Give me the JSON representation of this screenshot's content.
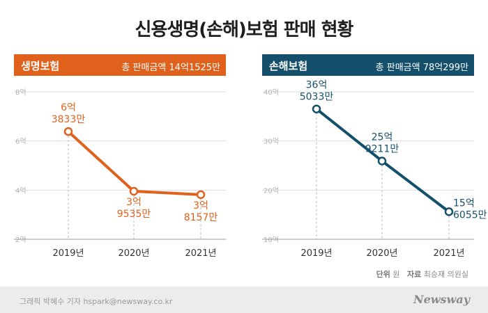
{
  "title": "신용생명(손해)보험 판매 현황",
  "notes": {
    "unit_label": "단위",
    "unit_value": "원",
    "source_label": "자료",
    "source_value": "최승재 의원실"
  },
  "footer": {
    "credit": "그래픽 박혜수 기자   hspark@newsway.co.kr",
    "brand": "Newsway"
  },
  "colors": {
    "life": "#e0611c",
    "nonlife": "#14506c"
  },
  "chart_data": [
    {
      "type": "line",
      "title": "생명보험",
      "subtitle": "총 판매금액 14억1525만",
      "categories": [
        "2019년",
        "2020년",
        "2021년"
      ],
      "values": [
        6.3833,
        3.9535,
        3.8157
      ],
      "data_labels": [
        [
          "6억",
          "3833만"
        ],
        [
          "3억",
          "9535만"
        ],
        [
          "3억",
          "8157만"
        ]
      ],
      "ylim": [
        2,
        8
      ],
      "yticks": [
        8,
        6,
        4,
        2
      ],
      "ytick_labels": [
        "8억",
        "6억",
        "4억",
        "2억"
      ],
      "label_pos": [
        "above",
        "below",
        "below"
      ],
      "color": "#e0611c"
    },
    {
      "type": "line",
      "title": "손해보험",
      "subtitle": "총 판매금액 78억299만",
      "categories": [
        "2019년",
        "2020년",
        "2021년"
      ],
      "values": [
        36.5033,
        25.9211,
        15.6055
      ],
      "data_labels": [
        [
          "36억",
          "5033만"
        ],
        [
          "25억",
          "9211만"
        ],
        [
          "15억",
          "6055만"
        ]
      ],
      "ylim": [
        10,
        40
      ],
      "yticks": [
        40,
        30,
        20,
        10
      ],
      "ytick_labels": [
        "40억",
        "30억",
        "20억",
        "10억"
      ],
      "label_pos": [
        "above",
        "above",
        "right"
      ],
      "color": "#14506c"
    }
  ]
}
